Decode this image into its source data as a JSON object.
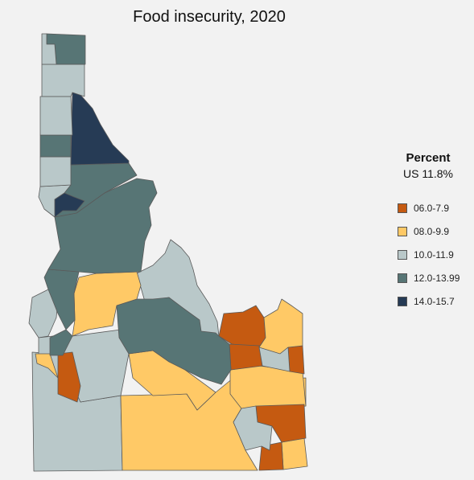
{
  "title": "Food insecurity, 2020",
  "legend": {
    "title": "Percent",
    "subtitle": "US 11.8%",
    "items": [
      {
        "label": "06.0-7.9",
        "color": "#c55a11"
      },
      {
        "label": "08.0-9.9",
        "color": "#ffc966"
      },
      {
        "label": "10.0-11.9",
        "color": "#b9c8c9"
      },
      {
        "label": "12.0-13.99",
        "color": "#577575"
      },
      {
        "label": "14.0-15.7",
        "color": "#263b55"
      }
    ]
  }
}
